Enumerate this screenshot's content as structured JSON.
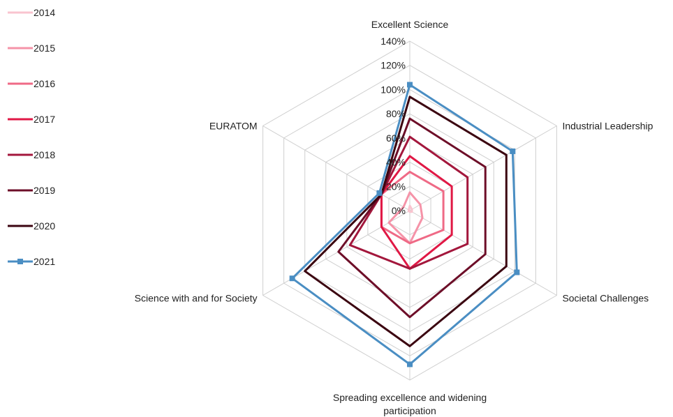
{
  "chart_data": {
    "type": "radar",
    "axes": [
      {
        "label": "Excellent Science"
      },
      {
        "label": "Industrial Leadership"
      },
      {
        "label": "Societal Challenges"
      },
      {
        "label": "Spreading excellence and widening participation",
        "label_lines": [
          "Spreading excellence and widening",
          "participation"
        ]
      },
      {
        "label": "Science with and for Society"
      },
      {
        "label": "EURATOM"
      }
    ],
    "ticks": [
      "0%",
      "20%",
      "40%",
      "60%",
      "80%",
      "100%",
      "120%",
      "140%"
    ],
    "tick_values": [
      0,
      20,
      40,
      60,
      80,
      100,
      120,
      140
    ],
    "rmax": 140,
    "grid": true,
    "legend_position": "left",
    "series": [
      {
        "name": "2014",
        "color": "#f9c4cf",
        "marker": "none",
        "values": [
          4,
          2,
          2,
          1,
          1,
          1
        ]
      },
      {
        "name": "2015",
        "color": "#f593a8",
        "marker": "none",
        "values": [
          15,
          10,
          12,
          27,
          20,
          6
        ]
      },
      {
        "name": "2016",
        "color": "#ef6a86",
        "marker": "none",
        "values": [
          32,
          32,
          32,
          27,
          27,
          27
        ]
      },
      {
        "name": "2017",
        "color": "#e01845",
        "marker": "none",
        "values": [
          45,
          40,
          40,
          48,
          27,
          27
        ]
      },
      {
        "name": "2018",
        "color": "#a3173c",
        "marker": "none",
        "values": [
          61,
          55,
          55,
          48,
          57,
          27
        ]
      },
      {
        "name": "2019",
        "color": "#6d0e28",
        "marker": "none",
        "values": [
          76,
          72,
          72,
          88,
          68,
          27
        ]
      },
      {
        "name": "2020",
        "color": "#3b0410",
        "marker": "none",
        "values": [
          94,
          92,
          92,
          112,
          100,
          27
        ]
      },
      {
        "name": "2021",
        "color": "#4a8ec3",
        "marker": "square",
        "values": [
          104,
          98,
          102,
          127,
          112,
          29
        ]
      }
    ]
  }
}
